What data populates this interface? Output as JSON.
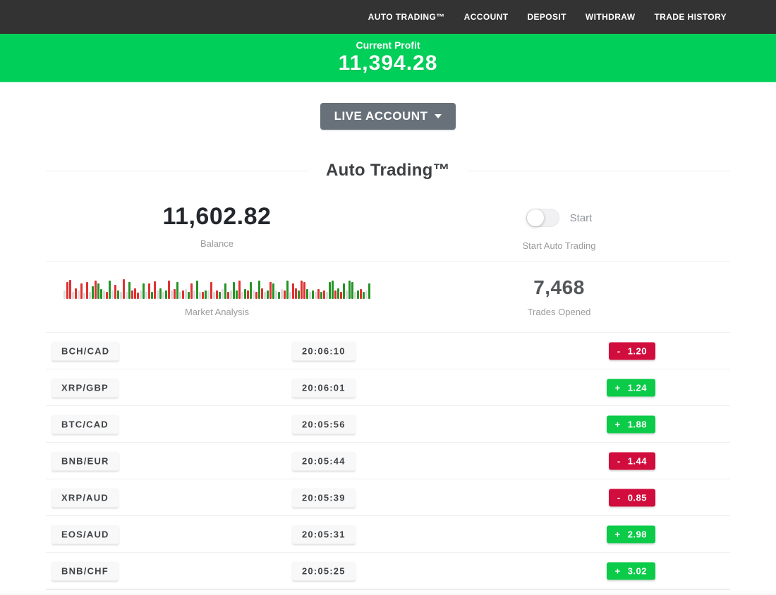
{
  "navbar": {
    "items": [
      "AUTO TRADING™",
      "ACCOUNT",
      "DEPOSIT",
      "WITHDRAW",
      "TRADE HISTORY"
    ]
  },
  "profit_banner": {
    "label": "Current Profit",
    "value": "11,394.28",
    "color": "#00d059"
  },
  "account_selector": {
    "label": "LIVE ACCOUNT",
    "color": "#687079"
  },
  "section_title": "Auto Trading™",
  "stats": {
    "balance": {
      "value": "11,602.82",
      "label": "Balance"
    },
    "auto_trading": {
      "toggle_state": "off",
      "toggle_label": "Start",
      "caption": "Start Auto Trading"
    },
    "market_analysis": {
      "label": "Market Analysis",
      "bar_colors": {
        "r": "#e03232",
        "g": "#269326",
        "n": "#dcdcdc"
      },
      "bars": [
        "n12",
        "r24",
        "r27",
        "n10",
        "r15",
        "n12",
        "r22",
        "n9",
        "r24",
        "n10",
        "g18",
        "r26",
        "g22",
        "g14",
        "n12",
        "r10",
        "g26",
        "n12",
        "r20",
        "g12",
        "n10",
        "r28",
        "n10",
        "g24",
        "r12",
        "r15",
        "r9",
        "n12",
        "g22",
        "n10",
        "r22",
        "g10",
        "r25",
        "n12",
        "g15",
        "n10",
        "g12",
        "r26",
        "n12",
        "r14",
        "g24",
        "n10",
        "r12",
        "n14",
        "g10",
        "r22",
        "n12",
        "g26",
        "n10",
        "r10",
        "g12",
        "n12",
        "r24",
        "n10",
        "r12",
        "g10",
        "n14",
        "g22",
        "r10",
        "n12",
        "g24",
        "g12",
        "r26",
        "n10",
        "g14",
        "r12",
        "g24",
        "n12",
        "r10",
        "g26",
        "r15",
        "n10",
        "g12",
        "r24",
        "g22",
        "n12",
        "g10",
        "n14",
        "r12",
        "g26",
        "n10",
        "r22",
        "r15",
        "g12",
        "r26",
        "r24",
        "g14",
        "n10",
        "g12",
        "n10",
        "r14",
        "g10",
        "r12",
        "n10",
        "g24",
        "g26",
        "r12",
        "g15",
        "r10",
        "g22",
        "n12",
        "g26",
        "g24",
        "n10",
        "g12",
        "r14",
        "g10",
        "n12",
        "g22"
      ]
    },
    "trades_opened": {
      "value": "7,468",
      "label": "Trades Opened"
    }
  },
  "trades": {
    "up_color": "#0bcb49",
    "down_color": "#d10d3d",
    "rows": [
      {
        "pair": "BCH/CAD",
        "time": "20:06:10",
        "sign": "-",
        "amount": "1.20",
        "direction": "down"
      },
      {
        "pair": "XRP/GBP",
        "time": "20:06:01",
        "sign": "+",
        "amount": "1.24",
        "direction": "up"
      },
      {
        "pair": "BTC/CAD",
        "time": "20:05:56",
        "sign": "+",
        "amount": "1.88",
        "direction": "up"
      },
      {
        "pair": "BNB/EUR",
        "time": "20:05:44",
        "sign": "-",
        "amount": "1.44",
        "direction": "down"
      },
      {
        "pair": "XRP/AUD",
        "time": "20:05:39",
        "sign": "-",
        "amount": "0.85",
        "direction": "down"
      },
      {
        "pair": "EOS/AUD",
        "time": "20:05:31",
        "sign": "+",
        "amount": "2.98",
        "direction": "up"
      },
      {
        "pair": "BNB/CHF",
        "time": "20:05:25",
        "sign": "+",
        "amount": "3.02",
        "direction": "up"
      }
    ]
  }
}
